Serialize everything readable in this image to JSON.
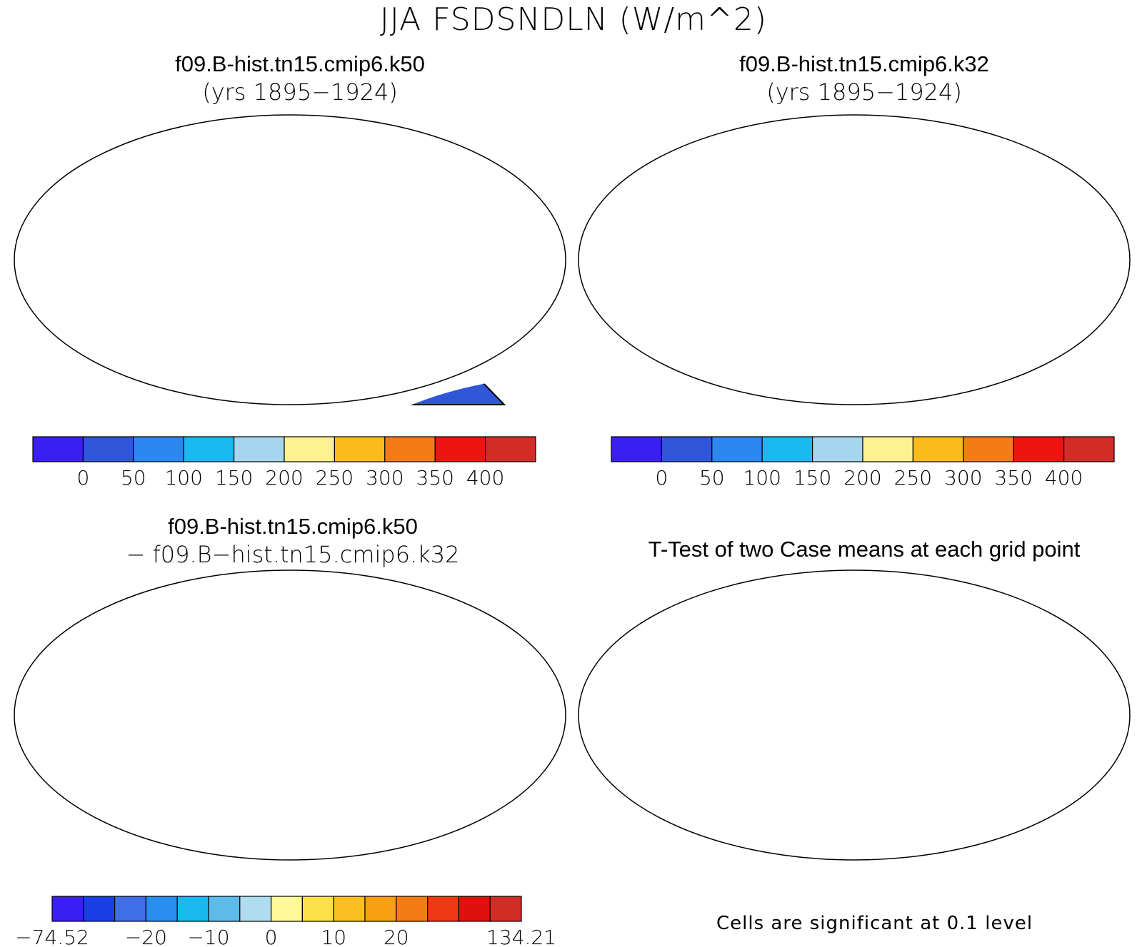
{
  "figure_title": "JJA FSDSNDLN (W/m^2)",
  "panels": [
    {
      "title": "f09.B-hist.tn15.cmip6.k50",
      "subtitle": "(yrs 1895−1924)"
    },
    {
      "title": "f09.B-hist.tn15.cmip6.k32",
      "subtitle": "(yrs 1895−1924)"
    },
    {
      "title": "f09.B-hist.tn15.cmip6.k50",
      "subtitle": "− f09.B−hist.tn15.cmip6.k32"
    },
    {
      "title": "T-Test of two Case means at each grid point",
      "subtitle": ""
    }
  ],
  "colorbar_abs": {
    "colors": [
      "#3b1ff2",
      "#2f55d8",
      "#2a88ee",
      "#19b8f0",
      "#a5d6ee",
      "#fdf28f",
      "#fbbb1c",
      "#f47c16",
      "#ee1410",
      "#d12d27"
    ],
    "labels": [
      "0",
      "50",
      "100",
      "150",
      "200",
      "250",
      "300",
      "350",
      "400"
    ]
  },
  "colorbar_diff": {
    "colors": [
      "#3b1ff2",
      "#1a3fe6",
      "#3f6fe4",
      "#2a8ef0",
      "#19b8f0",
      "#5cbbea",
      "#b0dcf0",
      "#fff89a",
      "#fde04a",
      "#fbbf24",
      "#f8a010",
      "#f47c16",
      "#ee3a14",
      "#e0100f",
      "#d12d27"
    ],
    "labels": [
      "−74.52",
      "−20",
      "−10",
      "0",
      "10",
      "20",
      "134.21"
    ]
  },
  "footnote": "Cells are significant at 0.1 level"
}
